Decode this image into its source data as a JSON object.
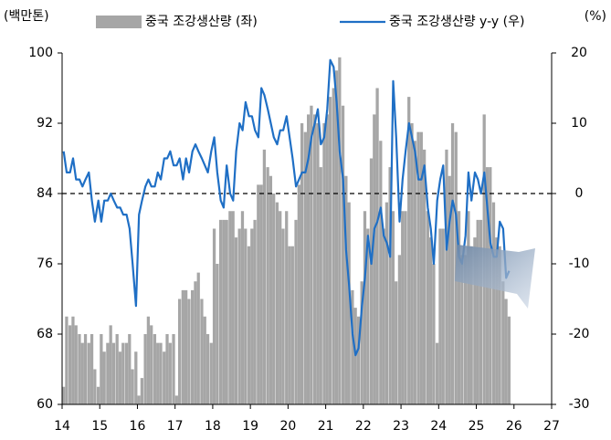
{
  "chart_data": {
    "type": "bar-line",
    "y_axis_title": "(백만톤)",
    "y2_axis_title": "(%)",
    "xlim": [
      14,
      27
    ],
    "xticks": [
      14,
      15,
      16,
      17,
      18,
      19,
      20,
      21,
      22,
      23,
      24,
      25,
      26,
      27
    ],
    "ylim": [
      60,
      100
    ],
    "yticks": [
      60,
      68,
      76,
      84,
      92,
      100
    ],
    "y2lim": [
      -30,
      20
    ],
    "y2ticks": [
      -30,
      -20,
      -10,
      0,
      10,
      20
    ],
    "ref_line": {
      "y": 84,
      "style": "dashed"
    },
    "x": [
      14,
      14.08,
      14.17,
      14.25,
      14.33,
      14.42,
      14.5,
      14.58,
      14.67,
      14.75,
      14.83,
      14.92,
      15,
      15.08,
      15.17,
      15.25,
      15.33,
      15.42,
      15.5,
      15.58,
      15.67,
      15.75,
      15.83,
      15.92,
      16,
      16.08,
      16.17,
      16.25,
      16.33,
      16.42,
      16.5,
      16.58,
      16.67,
      16.75,
      16.83,
      16.92,
      17,
      17.08,
      17.17,
      17.25,
      17.33,
      17.42,
      17.5,
      17.58,
      17.67,
      17.75,
      17.83,
      17.92,
      18,
      18.08,
      18.17,
      18.25,
      18.33,
      18.42,
      18.5,
      18.58,
      18.67,
      18.75,
      18.83,
      18.92,
      19,
      19.08,
      19.17,
      19.25,
      19.33,
      19.42,
      19.5,
      19.58,
      19.67,
      19.75,
      19.83,
      19.92,
      20,
      20.08,
      20.17,
      20.25,
      20.33,
      20.42,
      20.5,
      20.58,
      20.67,
      20.75,
      20.83,
      20.92,
      21,
      21.08,
      21.17,
      21.25,
      21.33,
      21.42,
      21.5,
      21.58,
      21.67,
      21.75,
      21.83,
      21.92,
      22,
      22.08,
      22.17,
      22.25,
      22.33,
      22.42,
      22.5,
      22.58,
      22.67,
      22.75,
      22.83,
      22.92,
      23,
      23.08,
      23.17,
      23.25,
      23.33,
      23.42,
      23.5,
      23.58,
      23.67,
      23.75,
      23.83,
      23.92,
      24,
      24.08,
      24.17,
      24.25,
      24.33,
      24.42,
      24.5,
      24.58,
      24.67,
      24.75,
      24.83,
      24.92,
      25,
      25.08,
      25.17,
      25.25,
      25.33,
      25.42,
      25.5,
      25.58,
      25.67,
      25.75,
      25.83
    ],
    "series": [
      {
        "name": "중국 조강생산량 (좌)",
        "color": "#a6a6a6",
        "kind": "bar",
        "axis": "y",
        "values": [
          62,
          70,
          69,
          70,
          69,
          68,
          67,
          68,
          67,
          68,
          64,
          62,
          68,
          66,
          67,
          69,
          67,
          68,
          66,
          67,
          67,
          68,
          64,
          66,
          61,
          63,
          68,
          70,
          69,
          68,
          67,
          67,
          66,
          68,
          67,
          68,
          61,
          72,
          73,
          73,
          72,
          73,
          74,
          75,
          72,
          70,
          68,
          67,
          80,
          76,
          81,
          81,
          81,
          82,
          82,
          79,
          80,
          82,
          80,
          78,
          80,
          81,
          85,
          85,
          89,
          87,
          86,
          84,
          83,
          82,
          80,
          82,
          78,
          78,
          81,
          85,
          92,
          91,
          93,
          94,
          93,
          92,
          87,
          92,
          93,
          95,
          96,
          98,
          99.5,
          94,
          86,
          83,
          73,
          71,
          70,
          74,
          82,
          80,
          88,
          93,
          96,
          90,
          80,
          83,
          87,
          82,
          74,
          77,
          82,
          82,
          95,
          92,
          90,
          91,
          91,
          89,
          82,
          79,
          76,
          67,
          80,
          80,
          89,
          86,
          92,
          91,
          82,
          77,
          77,
          82,
          78,
          79,
          81,
          81,
          93,
          87,
          87,
          83,
          79,
          78,
          74,
          72,
          70
        ]
      },
      {
        "name": "중국 조강생산량 y-y (우)",
        "color": "#1f6fc5",
        "kind": "line",
        "axis": "y2",
        "values": [
          6,
          3,
          3,
          5,
          2,
          2,
          1,
          2,
          3,
          -1,
          -4,
          -1,
          -4,
          -1,
          -1,
          0,
          -1,
          -2,
          -2,
          -3,
          -3,
          -5,
          -10,
          -16,
          -3,
          -1,
          1,
          2,
          1,
          1,
          3,
          2,
          5,
          5,
          6,
          4,
          4,
          5,
          2,
          5,
          3,
          6,
          7,
          6,
          5,
          4,
          3,
          6,
          8,
          3,
          -1,
          -2,
          4,
          0,
          -1,
          6,
          10,
          9,
          13,
          11,
          11,
          9,
          8,
          15,
          14,
          12,
          10,
          8,
          7,
          9,
          9,
          11,
          8,
          5,
          1,
          2,
          3,
          3,
          5,
          8,
          10,
          12,
          7,
          8,
          12,
          19,
          18,
          13,
          6,
          2,
          -8,
          -13,
          -20,
          -23,
          -22,
          -16,
          -12,
          -6,
          -10,
          -5,
          -4,
          -2,
          -6,
          -7,
          -9,
          16,
          8,
          -4,
          2,
          6,
          10,
          8,
          6,
          2,
          2,
          4,
          -2,
          -5,
          -10,
          -1,
          2,
          4,
          -8,
          -4,
          -1,
          -3,
          -9,
          -10,
          -6,
          3,
          -1,
          3,
          2,
          0,
          3,
          -2,
          -7,
          -9,
          -9,
          -4,
          -5,
          -12,
          -11
        ]
      }
    ]
  }
}
